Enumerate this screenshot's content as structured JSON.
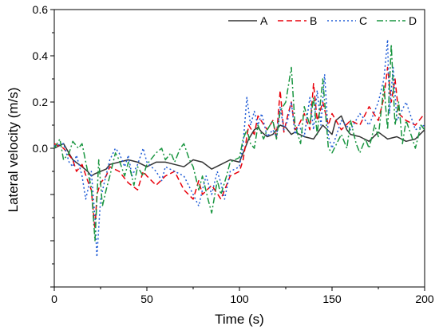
{
  "chart_data": {
    "type": "line",
    "title": "",
    "xlabel": "Time (s)",
    "ylabel": "Lateral velocity (m/s)",
    "xlim": [
      0,
      200
    ],
    "ylim": [
      -0.6,
      0.6
    ],
    "x_ticks": [
      0,
      50,
      100,
      150,
      200
    ],
    "y_tick_labels": [
      {
        "value": 0.6,
        "label": "0.6"
      },
      {
        "value": 0.4,
        "label": "0.4"
      },
      {
        "value": 0.2,
        "label": "0.2"
      },
      {
        "value": 0.0,
        "label": "0.0"
      }
    ],
    "y_minor_ticks": [
      -0.2,
      -0.4,
      -0.6
    ],
    "grid": false,
    "legend_position": "top-right",
    "series": [
      {
        "name": "A",
        "color": "#333333",
        "dash": "solid",
        "x": [
          0,
          5,
          10,
          15,
          18,
          20,
          22,
          25,
          28,
          30,
          35,
          40,
          45,
          50,
          55,
          60,
          65,
          70,
          75,
          80,
          85,
          90,
          95,
          100,
          102,
          105,
          108,
          110,
          112,
          115,
          118,
          120,
          122,
          125,
          128,
          130,
          135,
          140,
          145,
          150,
          152,
          155,
          158,
          160,
          165,
          170,
          175,
          180,
          185,
          190,
          195,
          200
        ],
        "y": [
          0.0,
          0.02,
          -0.05,
          -0.08,
          -0.1,
          -0.12,
          -0.11,
          -0.1,
          -0.09,
          -0.07,
          -0.06,
          -0.05,
          -0.06,
          -0.08,
          -0.06,
          -0.06,
          -0.07,
          -0.08,
          -0.05,
          -0.06,
          -0.09,
          -0.07,
          -0.05,
          -0.06,
          -0.02,
          0.04,
          0.08,
          0.09,
          0.07,
          0.05,
          0.06,
          0.08,
          0.1,
          0.09,
          0.06,
          0.07,
          0.05,
          0.04,
          0.1,
          0.06,
          0.12,
          0.14,
          0.08,
          0.06,
          0.05,
          0.03,
          0.07,
          0.04,
          0.05,
          0.03,
          0.04,
          0.08
        ]
      },
      {
        "name": "B",
        "color": "#e8000b",
        "dash": "dashed",
        "x": [
          0,
          5,
          10,
          12,
          15,
          18,
          20,
          22,
          23,
          25,
          28,
          30,
          35,
          40,
          45,
          48,
          50,
          55,
          60,
          65,
          70,
          75,
          78,
          80,
          85,
          90,
          95,
          100,
          102,
          105,
          108,
          110,
          115,
          118,
          120,
          122,
          124,
          126,
          128,
          130,
          132,
          135,
          138,
          140,
          142,
          145,
          148,
          150,
          155,
          160,
          165,
          170,
          175,
          178,
          180,
          182,
          184,
          186,
          190,
          195,
          200
        ],
        "y": [
          0.02,
          0.0,
          -0.05,
          -0.1,
          -0.07,
          -0.14,
          -0.18,
          -0.35,
          -0.2,
          -0.15,
          -0.12,
          -0.08,
          -0.1,
          -0.15,
          -0.18,
          -0.1,
          -0.12,
          -0.16,
          -0.12,
          -0.1,
          -0.18,
          -0.22,
          -0.14,
          -0.2,
          -0.16,
          -0.22,
          -0.12,
          -0.1,
          -0.05,
          0.1,
          0.06,
          0.14,
          0.08,
          0.12,
          0.05,
          0.25,
          0.07,
          0.14,
          0.2,
          0.08,
          0.1,
          0.15,
          0.08,
          0.28,
          0.12,
          0.2,
          0.1,
          0.15,
          0.08,
          0.12,
          0.1,
          0.18,
          0.12,
          0.22,
          0.35,
          0.2,
          0.3,
          0.15,
          0.12,
          0.1,
          0.15
        ]
      },
      {
        "name": "C",
        "color": "#1f5cd6",
        "dash": "dotted",
        "x": [
          0,
          5,
          8,
          10,
          12,
          15,
          17,
          19,
          20,
          22,
          23,
          25,
          27,
          30,
          33,
          35,
          38,
          40,
          42,
          45,
          48,
          50,
          55,
          58,
          60,
          65,
          70,
          75,
          78,
          80,
          82,
          85,
          88,
          90,
          92,
          95,
          100,
          102,
          104,
          106,
          108,
          110,
          112,
          115,
          118,
          120,
          122,
          124,
          126,
          128,
          130,
          132,
          135,
          138,
          140,
          142,
          144,
          146,
          148,
          150,
          155,
          160,
          165,
          170,
          175,
          178,
          180,
          181,
          183,
          185,
          190,
          195,
          200
        ],
        "y": [
          0.01,
          0.02,
          -0.06,
          -0.08,
          -0.03,
          -0.12,
          -0.22,
          -0.15,
          -0.1,
          -0.3,
          -0.47,
          -0.22,
          -0.15,
          -0.05,
          0.0,
          -0.02,
          -0.08,
          -0.03,
          -0.12,
          -0.07,
          0.0,
          -0.06,
          -0.1,
          -0.14,
          -0.08,
          -0.1,
          -0.12,
          -0.2,
          -0.25,
          -0.18,
          -0.12,
          -0.2,
          -0.1,
          -0.15,
          -0.22,
          -0.1,
          -0.08,
          0.02,
          0.22,
          0.1,
          0.16,
          0.1,
          0.15,
          0.05,
          0.08,
          0.05,
          0.18,
          0.08,
          0.12,
          0.2,
          0.06,
          0.1,
          0.05,
          0.22,
          0.08,
          0.25,
          0.1,
          0.32,
          0.05,
          0.0,
          0.12,
          0.08,
          0.15,
          0.1,
          0.2,
          0.3,
          0.47,
          0.15,
          0.35,
          0.12,
          0.2,
          0.08,
          0.1
        ]
      },
      {
        "name": "D",
        "color": "#1a9641",
        "dash": "dashdot",
        "x": [
          0,
          3,
          5,
          8,
          10,
          13,
          15,
          18,
          20,
          22,
          24,
          26,
          28,
          30,
          33,
          35,
          38,
          40,
          43,
          45,
          48,
          50,
          55,
          58,
          60,
          63,
          65,
          68,
          70,
          73,
          75,
          78,
          80,
          83,
          85,
          88,
          90,
          93,
          95,
          100,
          102,
          104,
          106,
          108,
          110,
          113,
          115,
          118,
          120,
          122,
          125,
          128,
          130,
          133,
          135,
          138,
          140,
          142,
          145,
          148,
          150,
          155,
          158,
          160,
          163,
          165,
          168,
          170,
          173,
          175,
          178,
          180,
          182,
          184,
          186,
          188,
          190,
          193,
          195,
          198,
          200
        ],
        "y": [
          0.0,
          0.04,
          -0.05,
          -0.02,
          0.03,
          0.0,
          0.02,
          -0.1,
          -0.17,
          -0.4,
          -0.05,
          -0.25,
          -0.18,
          -0.12,
          -0.02,
          -0.05,
          -0.12,
          -0.06,
          -0.16,
          -0.08,
          -0.12,
          -0.07,
          -0.02,
          0.0,
          -0.05,
          -0.02,
          -0.06,
          0.0,
          0.02,
          -0.05,
          -0.08,
          -0.18,
          -0.12,
          -0.22,
          -0.28,
          -0.14,
          -0.2,
          -0.12,
          -0.06,
          -0.04,
          0.04,
          0.08,
          0.02,
          0.0,
          0.1,
          0.04,
          0.08,
          0.12,
          0.04,
          0.16,
          0.2,
          0.35,
          0.1,
          0.02,
          0.18,
          0.1,
          0.22,
          0.06,
          0.3,
          0.0,
          -0.02,
          0.06,
          0.0,
          0.12,
          0.02,
          -0.02,
          0.04,
          0.0,
          0.1,
          0.05,
          0.27,
          0.08,
          0.45,
          0.1,
          0.2,
          0.02,
          0.12,
          0.05,
          0.0,
          0.1,
          0.08
        ]
      }
    ]
  }
}
